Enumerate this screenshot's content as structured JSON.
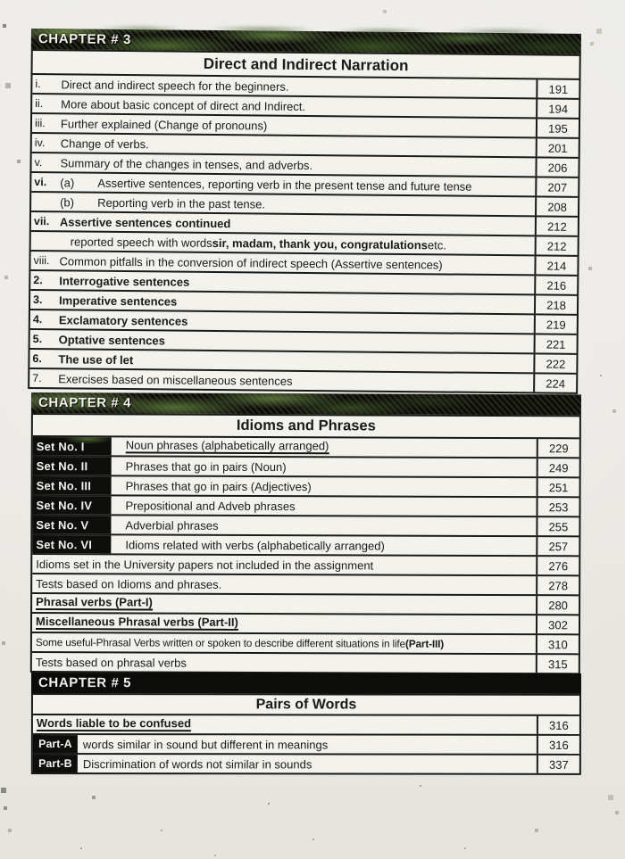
{
  "palette": {
    "paper": "#eae8e3",
    "ink": "#1a1a18",
    "bar_black": "#0c0c09",
    "camo_green": "#54703a",
    "row_white": "#f3f2ed"
  },
  "sections": [
    {
      "chapter": "CHAPTER # 3",
      "title": "Direct and Indirect Narration",
      "rows": [
        {
          "num": "i.",
          "text": "Direct and indirect speech for the beginners.",
          "page": "191"
        },
        {
          "num": "ii.",
          "text": "More about basic concept of direct and Indirect.",
          "page": "194"
        },
        {
          "num": "iii.",
          "text": "Further explained (Change of pronouns)",
          "page": "195"
        },
        {
          "num": "iv.",
          "text": "Change of verbs.",
          "page": "201"
        },
        {
          "num": "v.",
          "text": "Summary of the changes in tenses, and adverbs.",
          "page": "206"
        },
        {
          "num": "vi.",
          "sub": "(a)",
          "text": "Assertive sentences, reporting verb in the present tense and future tense",
          "page": "207"
        },
        {
          "num": "",
          "sub": "(b)",
          "text": "Reporting verb in the past tense.",
          "page": "208"
        },
        {
          "num": "vii.",
          "text": "Assertive sentences continued",
          "page": "212"
        },
        {
          "pre": "reported speech with words",
          "bold": " sir, madam, thank you, congratulations",
          "post": " etc.",
          "page": "212"
        },
        {
          "num": "viii.",
          "text": "Common pitfalls in the conversion of indirect speech (Assertive sentences)",
          "page": "214"
        },
        {
          "num": "2.",
          "text": "Interrogative sentences",
          "page": "216"
        },
        {
          "num": "3.",
          "text": "Imperative sentences",
          "page": "218"
        },
        {
          "num": "4.",
          "text": "Exclamatory sentences",
          "page": "219"
        },
        {
          "num": "5.",
          "text": "Optative sentences",
          "page": "221"
        },
        {
          "num": "6.",
          "text": "The use of let",
          "page": "222"
        },
        {
          "num": "7.",
          "text": "Exercises based on miscellaneous sentences",
          "page": "224"
        }
      ]
    },
    {
      "chapter": "CHAPTER # 4",
      "title": "Idioms and Phrases",
      "rows": [
        {
          "label": "Set No. I",
          "text": "Noun phrases (alphabetically arranged)",
          "page": "229"
        },
        {
          "label": "Set No. II",
          "text": "Phrases that go in pairs (Noun)",
          "page": "249"
        },
        {
          "label": "Set No. III",
          "text": "Phrases that go in pairs (Adjectives)",
          "page": "251"
        },
        {
          "label": "Set No. IV",
          "text": "Prepositional and Adveb phrases",
          "page": "253"
        },
        {
          "label": "Set No. V",
          "text": "Adverbial phrases",
          "page": "255"
        },
        {
          "label": "Set No. VI",
          "text": "Idioms related with verbs (alphabetically arranged)",
          "page": "257"
        },
        {
          "text": "Idioms set in the University papers not included in the assignment",
          "page": "276"
        },
        {
          "text": "Tests based on Idioms and phrases.",
          "page": "278"
        },
        {
          "text": "Phrasal verbs (Part-I)",
          "page": "280"
        },
        {
          "text": "Miscellaneous Phrasal verbs (Part-II)",
          "page": "302"
        },
        {
          "pre": "Some useful-Phrasal Verbs written or spoken to describe different situations in life",
          "bold": " (Part-III)",
          "page": "310"
        },
        {
          "text": "Tests based on phrasal verbs",
          "page": "315"
        }
      ]
    },
    {
      "chapter": "CHAPTER # 5",
      "title": "Pairs of Words",
      "rows": [
        {
          "text": "Words liable to be confused",
          "page": "316"
        },
        {
          "label": "Part-A",
          "text": "words similar in sound but different in meanings",
          "page": "316"
        },
        {
          "label": "Part-B",
          "text": "Discrimination of words not similar in sounds",
          "page": "337"
        }
      ]
    }
  ]
}
